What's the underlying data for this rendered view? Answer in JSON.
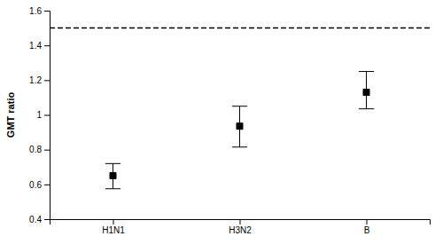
{
  "chart_data": {
    "type": "scatter",
    "categories": [
      "H1N1",
      "H3N2",
      "B"
    ],
    "values": [
      0.65,
      0.935,
      1.13
    ],
    "ci_lower": [
      0.575,
      0.815,
      1.035
    ],
    "ci_upper": [
      0.72,
      1.05,
      1.25
    ],
    "reference_line": 1.5,
    "ylim": [
      0.4,
      1.6
    ],
    "yticks": [
      0.4,
      0.6,
      0.8,
      1,
      1.2,
      1.4,
      1.6
    ],
    "ylabel": "GMT ratio",
    "color": "#000000",
    "marker": "square",
    "grid": false
  }
}
